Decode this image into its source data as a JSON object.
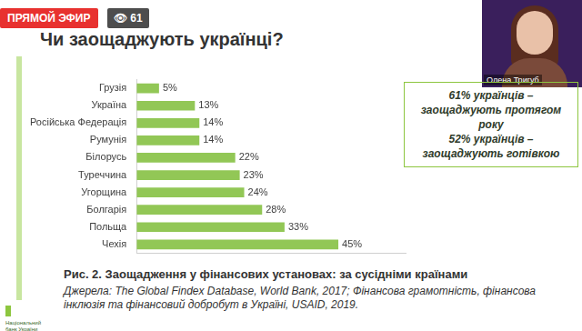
{
  "chart_data": {
    "type": "bar",
    "title": "Чи заощаджують українці?",
    "categories": [
      "Грузія",
      "Україна",
      "Російська Федерація",
      "Румунія",
      "Білорусь",
      "Туреччина",
      "Угорщина",
      "Болгарія",
      "Польща",
      "Чехія"
    ],
    "values": [
      5,
      13,
      14,
      14,
      22,
      23,
      24,
      28,
      33,
      45
    ],
    "value_labels": [
      "5%",
      "13%",
      "14%",
      "14%",
      "22%",
      "23%",
      "24%",
      "28%",
      "33%",
      "45%"
    ],
    "color": "#92c756",
    "orientation": "horizontal",
    "data_labels": true,
    "tick_labels": "y",
    "grid": false,
    "xlim": [
      0,
      60
    ],
    "annotations": [
      "61% українців – заощаджують протягом року",
      "52% українців – заощаджують готівкою"
    ],
    "caption": "Рис. 2. Заощадження у фінансових установах: за сусідніми країнами",
    "source": "Джерела: The Global Findex Database, World Bank, 2017; Фінансова грамотність, фінансова інклюзія та фінансовий добробут в Україні, USAID, 2019."
  },
  "page": {
    "live_badge": "ПРЯМОЙ ЭФИР",
    "viewers": 61,
    "speaker": "Олена Тригуб",
    "logo": "Національний банк України"
  }
}
